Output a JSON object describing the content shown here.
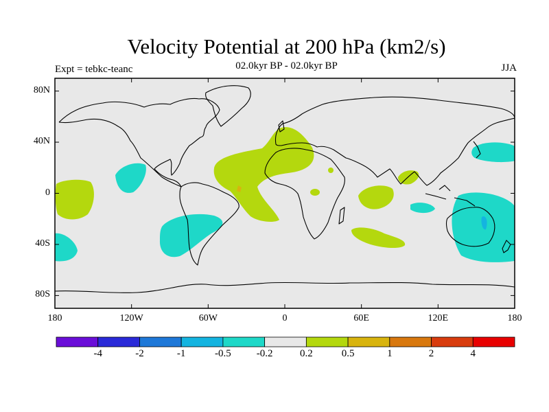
{
  "title": "Velocity Potential at 200 hPa (km2/s)",
  "subtitle": "02.0kyr BP - 02.0kyr BP",
  "experiment": "Expt = tebkc-teanc",
  "season": "JJA",
  "map": {
    "projection": "cylindrical equidistant",
    "lon_range": [
      -180,
      180
    ],
    "lat_range": [
      -90,
      90
    ],
    "background_color": "#e8e8e8",
    "coastline_color": "#000000"
  },
  "axes": {
    "y_ticks": [
      {
        "lat": 80,
        "label": "80N"
      },
      {
        "lat": 40,
        "label": "40N"
      },
      {
        "lat": 0,
        "label": "0"
      },
      {
        "lat": -40,
        "label": "40S"
      },
      {
        "lat": -80,
        "label": "80S"
      }
    ],
    "x_ticks": [
      {
        "lon": -180,
        "label": "180"
      },
      {
        "lon": -120,
        "label": "120W"
      },
      {
        "lon": -60,
        "label": "60W"
      },
      {
        "lon": 0,
        "label": "0"
      },
      {
        "lon": 60,
        "label": "60E"
      },
      {
        "lon": 120,
        "label": "120E"
      },
      {
        "lon": 180,
        "label": "180"
      }
    ]
  },
  "colorbar": {
    "colors": [
      "#6a0ed8",
      "#2a2ad8",
      "#1e78d8",
      "#14b4e0",
      "#1ed8c8",
      "#e8e8e8",
      "#b4d80e",
      "#d8b40e",
      "#d8780e",
      "#d83c0e",
      "#e80000"
    ],
    "labels": [
      "-4",
      "-2",
      "-1",
      "-0.5",
      "-0.2",
      "0.2",
      "0.5",
      "1",
      "2",
      "4"
    ]
  },
  "chart_data": {
    "type": "heatmap",
    "title": "Velocity Potential at 200 hPa (km2/s)",
    "variable": "velocity potential anomaly",
    "units": "km2/s",
    "levels": [
      -4,
      -2,
      -1,
      -0.5,
      -0.2,
      0.2,
      0.5,
      1,
      2,
      4
    ],
    "regions": [
      {
        "name": "atlantic-africa-positive",
        "lon_center": -15,
        "lat_center": 15,
        "category": "0.2 to 0.5",
        "color": "#b4d80e"
      },
      {
        "name": "east-pacific-positive",
        "lon_center": -168,
        "lat_center": -5,
        "category": "0.2 to 0.5",
        "color": "#b4d80e"
      },
      {
        "name": "indian-ocean-positive",
        "lon_center": 60,
        "lat_center": -2,
        "category": "0.2 to 0.5",
        "color": "#b4d80e"
      },
      {
        "name": "south-indian-positive",
        "lon_center": 68,
        "lat_center": -36,
        "category": "0.2 to 0.5",
        "color": "#b4d80e"
      },
      {
        "name": "bay-of-bengal-positive",
        "lon_center": 98,
        "lat_center": 13,
        "category": "0.2 to 0.5",
        "color": "#b4d80e"
      },
      {
        "name": "africa-small-positive",
        "lon_center": 22,
        "lat_center": 3,
        "category": "0.2 to 0.5",
        "color": "#b4d80e"
      },
      {
        "name": "arabia-small-positive",
        "lon_center": 35,
        "lat_center": 17,
        "category": "0.2 to 0.5",
        "color": "#b4d80e"
      },
      {
        "name": "north-pacific-negative",
        "lon_center": -120,
        "lat_center": 11,
        "category": "-0.5 to -0.2",
        "color": "#1ed8c8"
      },
      {
        "name": "south-america-negative",
        "lon_center": -75,
        "lat_center": -36,
        "category": "-0.5 to -0.2",
        "color": "#1ed8c8"
      },
      {
        "name": "south-pacific-negative",
        "lon_center": -172,
        "lat_center": -43,
        "category": "-0.5 to -0.2",
        "color": "#1ed8c8"
      },
      {
        "name": "australia-negative",
        "lon_center": 152,
        "lat_center": -30,
        "category": "-0.5 to -0.2",
        "color": "#1ed8c8"
      },
      {
        "name": "northwest-pacific-negative",
        "lon_center": 163,
        "lat_center": 33,
        "category": "-0.5 to -0.2",
        "color": "#1ed8c8"
      },
      {
        "name": "maritime-negative",
        "lon_center": 113,
        "lat_center": -10,
        "category": "-0.5 to -0.2",
        "color": "#1ed8c8"
      },
      {
        "name": "east-australia-negative",
        "lon_center": 157,
        "lat_center": -24,
        "category": "-1 to -0.5",
        "color": "#14b4e0"
      },
      {
        "name": "brazil-small-positive",
        "lon_center": -37,
        "lat_center": 4,
        "category": "0.5 to 1",
        "color": "#d8b40e"
      }
    ]
  }
}
